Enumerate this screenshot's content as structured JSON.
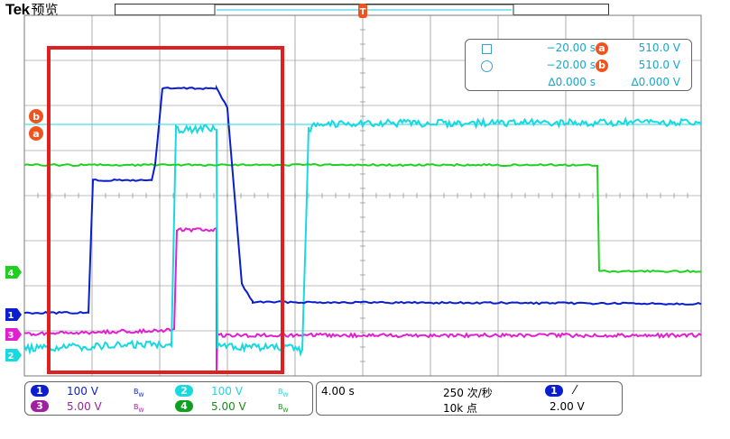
{
  "header": {
    "brand": "Tek",
    "mode": "预览"
  },
  "colors": {
    "ch1": "#0a1ed0",
    "ch2": "#18d8e0",
    "ch3": "#e020d0",
    "ch4": "#20d020",
    "cursor": "#f0541e",
    "highlight": "#e02020",
    "grid": "#7a7a7a",
    "readout_text": "#1aa6c8"
  },
  "trigger_marker": {
    "label": "T"
  },
  "cursor_markers": [
    {
      "label": "b"
    },
    {
      "label": "a"
    }
  ],
  "channel_markers": [
    {
      "label": "4",
      "color": "#20d020"
    },
    {
      "label": "1",
      "color": "#0a1ed0"
    },
    {
      "label": "3",
      "color": "#e020d0"
    },
    {
      "label": "2",
      "color": "#18d8e0"
    }
  ],
  "cursor_readout": {
    "row1": {
      "icon": "square-icon",
      "time": "−20.00 s",
      "badge": "a",
      "value": "510.0 V"
    },
    "row2": {
      "icon": "circle-icon",
      "time": "−20.00 s",
      "badge": "b",
      "value": "510.0 V"
    },
    "delta": {
      "time": "∆0.000 s",
      "value": "∆0.000 V"
    }
  },
  "channels_panel": [
    {
      "num": "1",
      "scale": "100 V",
      "bw": "B",
      "color": "#0a1ed0"
    },
    {
      "num": "2",
      "scale": "100 V",
      "bw": "B",
      "color": "#18d8e0"
    },
    {
      "num": "3",
      "scale": "5.00 V",
      "bw": "B",
      "color": "#a020a0"
    },
    {
      "num": "4",
      "scale": "5.00 V",
      "bw": "B",
      "color": "#109010"
    }
  ],
  "bw_sub": "W",
  "acquisition_panel": {
    "timebase": "4.00 s",
    "acq_rate": "250 次/秒",
    "record_length": "10k 点",
    "trigger_source": "1",
    "trigger_slope": "⁄",
    "trigger_level": "2.00 V"
  }
}
